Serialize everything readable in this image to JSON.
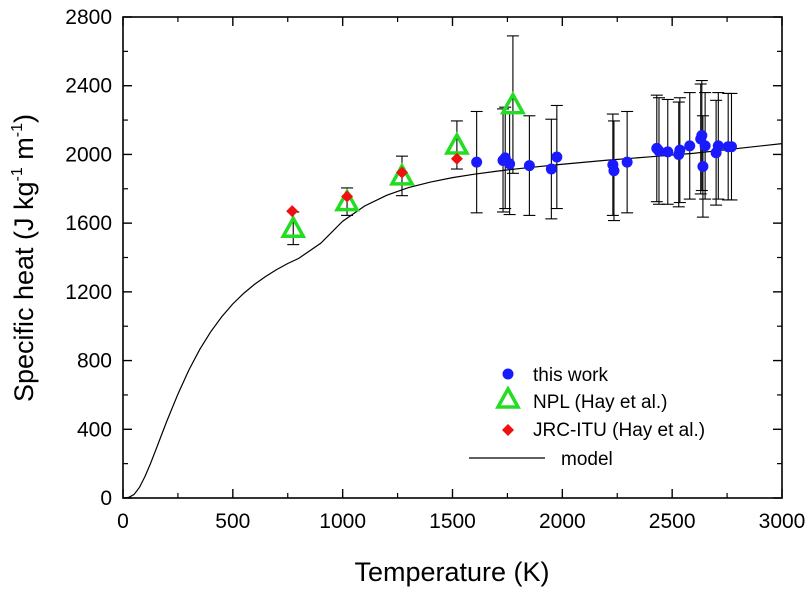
{
  "chart_data": {
    "type": "scatter",
    "xlabel": "Temperature (K)",
    "ylabel": {
      "prefix": "Specific heat (J kg",
      "sup1": "-1",
      "middle": " m",
      "sup2": "-1",
      "suffix": ")"
    },
    "xlim": [
      0,
      3000
    ],
    "ylim": [
      0,
      2800
    ],
    "xticks": [
      0,
      500,
      1000,
      1500,
      2000,
      2500,
      3000
    ],
    "yticks": [
      0,
      400,
      800,
      1200,
      1600,
      2000,
      2400,
      2800
    ],
    "grid": false,
    "legend_position": "bottom-right",
    "colors": {
      "this_work": "#1a1aff",
      "npl": "#22dd22",
      "jrc": "#ee1111",
      "model": "#000000",
      "errorbar": "#000000"
    },
    "series": [
      {
        "name": "this work",
        "marker": "circle",
        "points": [
          {
            "x": 1610,
            "y": 1955,
            "err": 295
          },
          {
            "x": 1730,
            "y": 1965,
            "err": 300
          },
          {
            "x": 1740,
            "y": 1980,
            "err": 295
          },
          {
            "x": 1760,
            "y": 1945,
            "err": 295
          },
          {
            "x": 1850,
            "y": 1935,
            "err": 290
          },
          {
            "x": 1950,
            "y": 1915,
            "err": 290
          },
          {
            "x": 1975,
            "y": 1985,
            "err": 300
          },
          {
            "x": 2230,
            "y": 1940,
            "err": 295
          },
          {
            "x": 2235,
            "y": 1905,
            "err": 290
          },
          {
            "x": 2295,
            "y": 1955,
            "err": 295
          },
          {
            "x": 2430,
            "y": 2035,
            "err": 310
          },
          {
            "x": 2440,
            "y": 2020,
            "err": 310
          },
          {
            "x": 2480,
            "y": 2015,
            "err": 305
          },
          {
            "x": 2530,
            "y": 2000,
            "err": 305
          },
          {
            "x": 2535,
            "y": 2025,
            "err": 305
          },
          {
            "x": 2580,
            "y": 2050,
            "err": 310
          },
          {
            "x": 2630,
            "y": 2090,
            "err": 320
          },
          {
            "x": 2635,
            "y": 2110,
            "err": 320
          },
          {
            "x": 2640,
            "y": 1930,
            "err": 295
          },
          {
            "x": 2650,
            "y": 2050,
            "err": 310
          },
          {
            "x": 2700,
            "y": 2010,
            "err": 305
          },
          {
            "x": 2710,
            "y": 2050,
            "err": 310
          },
          {
            "x": 2755,
            "y": 2045,
            "err": 310
          },
          {
            "x": 2770,
            "y": 2045,
            "err": 310
          }
        ]
      },
      {
        "name": "NPL (Hay et al.)",
        "marker": "triangle",
        "points": [
          {
            "x": 775,
            "y": 1570,
            "err": 95
          },
          {
            "x": 1020,
            "y": 1725,
            "err": 80
          },
          {
            "x": 1270,
            "y": 1875,
            "err": 115
          },
          {
            "x": 1520,
            "y": 2055,
            "err": 140
          },
          {
            "x": 1775,
            "y": 2290,
            "err": 400
          }
        ]
      },
      {
        "name": "JRC-ITU (Hay et al.)",
        "marker": "diamond",
        "points": [
          {
            "x": 770,
            "y": 1670
          },
          {
            "x": 1020,
            "y": 1755
          },
          {
            "x": 1270,
            "y": 1895
          },
          {
            "x": 1520,
            "y": 1975
          }
        ]
      }
    ],
    "model": {
      "name": "model",
      "x": [
        0,
        25,
        50,
        75,
        100,
        125,
        150,
        175,
        200,
        250,
        300,
        350,
        400,
        450,
        500,
        550,
        600,
        650,
        700,
        750,
        800,
        900,
        1000,
        1100,
        1200,
        1300,
        1400,
        1500,
        1600,
        1700,
        1800,
        1900,
        2000,
        2200,
        2400,
        2600,
        2800,
        3000
      ],
      "y": [
        0,
        3,
        20,
        62,
        125,
        200,
        282,
        366,
        449,
        605,
        745,
        866,
        969,
        1056,
        1130,
        1192,
        1245,
        1290,
        1330,
        1365,
        1395,
        1483,
        1611,
        1700,
        1762,
        1807,
        1839,
        1865,
        1885,
        1902,
        1917,
        1930,
        1943,
        1966,
        1986,
        2007,
        2035,
        2063
      ]
    }
  }
}
